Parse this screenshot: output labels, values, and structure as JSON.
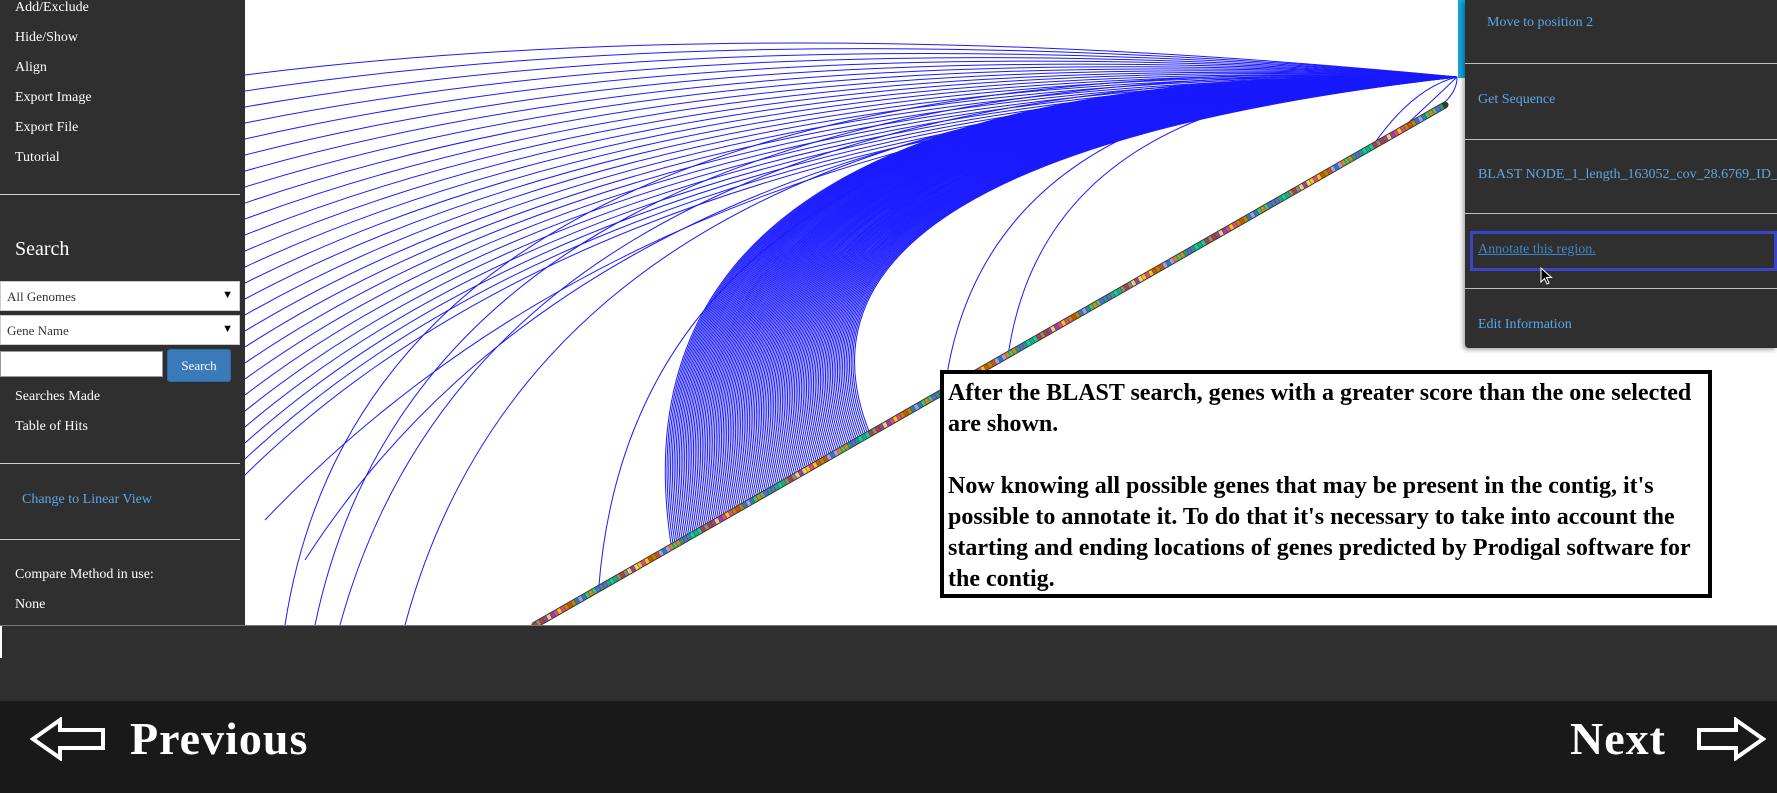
{
  "sidebar": {
    "menu_items": [
      "Add/Exclude",
      "Hide/Show",
      "Align",
      "Export Image",
      "Export File",
      "Tutorial"
    ],
    "search_heading": "Search",
    "genome_select": "All Genomes",
    "field_select": "Gene Name",
    "search_input_value": "",
    "search_button": "Search",
    "result_links": [
      "Searches Made",
      "Table of Hits"
    ],
    "linear_view_link": "Change to Linear View",
    "compare_label": "Compare Method in use:",
    "compare_value": "None"
  },
  "context_menu": {
    "move_to_position": "Move to position 2",
    "get_sequence": "Get Sequence",
    "blast": "BLAST NODE_1_length_163052_cov_28.6769_ID_",
    "annotate": "Annotate this region.",
    "edit_information": "Edit Information"
  },
  "tutorial": {
    "paragraph1": "After the BLAST search, genes with a greater score than the one selected are shown.",
    "paragraph2": "Now knowing all possible genes that may be present in the contig, it's possible to annotate it. To do that it's necessary to take into account the starting and ending locations of genes predicted by Prodigal software for the contig."
  },
  "navigation": {
    "previous": "Previous",
    "next": "Next"
  },
  "colors": {
    "sidebar_bg": "#2f2f2f",
    "arc_color": "#1a1aff",
    "link_color": "#5aa7e6",
    "accent": "#11a6dc",
    "highlight_border": "#3a44c8"
  },
  "icons": {
    "select_caret": "caret-down-icon",
    "previous_arrow": "arrow-left-icon",
    "next_arrow": "arrow-right-icon",
    "cursor": "mouse-pointer-icon"
  }
}
